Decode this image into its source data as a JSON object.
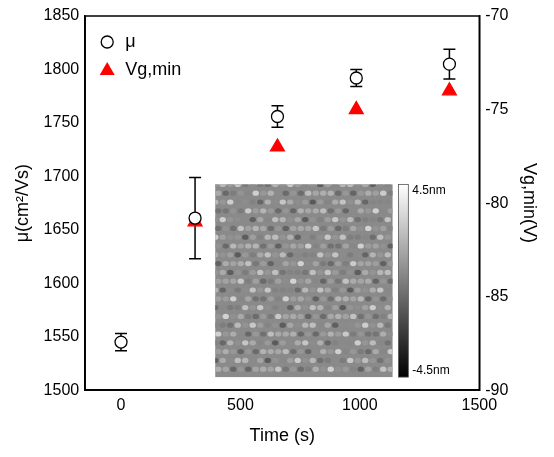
{
  "chart_data": {
    "type": "scatter",
    "x_label": "Time (s)",
    "y_label": "μ(cm²/Vs)",
    "y2_label": "Vg,min(V)",
    "x": [
      0,
      310,
      655,
      985,
      1375
    ],
    "series": [
      {
        "name": "μ",
        "color": "#000000",
        "marker": "circle",
        "values": [
          1545,
          1661,
          1756,
          1792,
          1805
        ],
        "errors": [
          8,
          38,
          10,
          8,
          14
        ]
      },
      {
        "name": "Vg,min",
        "color": "#ff0000",
        "marker": "triangle",
        "axis": "y2",
        "values": [
          null,
          -81,
          -77,
          -75,
          -74
        ]
      }
    ],
    "xlim": [
      -150,
      1500
    ],
    "xticks": [
      0,
      500,
      1000,
      1500
    ],
    "ylim": [
      1500,
      1850
    ],
    "yticks": [
      1500,
      1550,
      1600,
      1650,
      1700,
      1750,
      1800,
      1850
    ],
    "y2lim": [
      -90,
      -70
    ],
    "y2ticks": [
      -90,
      -85,
      -80,
      -75,
      -70
    ],
    "legend": "upper left",
    "grid": false,
    "inset": {
      "colorbar_range": [
        -4.5,
        4.5
      ],
      "colorbar_ticks": [
        {
          "value": 4.5,
          "label": "4.5nm"
        },
        {
          "value": -4.5,
          "label": "-4.5nm"
        }
      ]
    }
  }
}
